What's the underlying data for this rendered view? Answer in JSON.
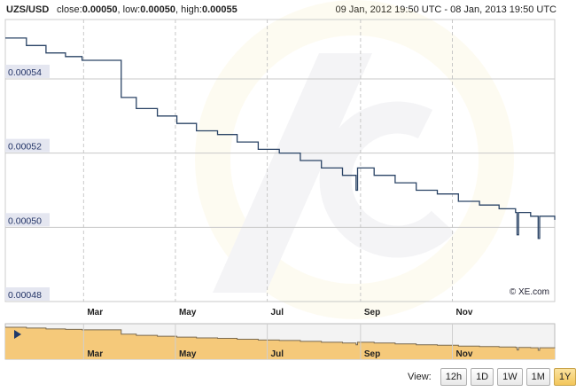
{
  "header": {
    "pair": "UZS/USD",
    "close_label": "close:",
    "close_value": "0.00050",
    "low_label": "low:",
    "low_value": "0.00050",
    "high_label": "high:",
    "high_value": "0.00055",
    "date_range": "09 Jan, 2012 19:50 UTC - 08 Jan, 2013 19:50 UTC"
  },
  "copyright": "© XE.com",
  "view": {
    "label": "View:",
    "buttons": [
      "12h",
      "1D",
      "1W",
      "1M",
      "1Y"
    ],
    "active": "1Y"
  },
  "colors": {
    "line": "#2b4466",
    "navigator_fill": "#f5c97a",
    "navigator_line": "#7a6a50",
    "grid": "#c8c8c8",
    "plot_bg": "#f4f4f8"
  },
  "chart_data": {
    "type": "line",
    "series": [
      {
        "name": "UZS/USD",
        "x": [
          "2012-01-09",
          "2012-01-23",
          "2012-02-05",
          "2012-02-18",
          "2012-02-29",
          "2012-03-12",
          "2012-03-24",
          "2012-03-26",
          "2012-04-05",
          "2012-04-19",
          "2012-05-02",
          "2012-05-15",
          "2012-05-29",
          "2012-06-11",
          "2012-06-25",
          "2012-07-09",
          "2012-07-23",
          "2012-08-06",
          "2012-08-20",
          "2012-08-29",
          "2012-08-30",
          "2012-09-10",
          "2012-09-24",
          "2012-10-08",
          "2012-10-22",
          "2012-11-05",
          "2012-11-19",
          "2012-12-02",
          "2012-12-13",
          "2012-12-14",
          "2012-12-15",
          "2012-12-23",
          "2012-12-27",
          "2012-12-28",
          "2012-12-29",
          "2013-01-08"
        ],
        "values": [
          0.000551,
          0.000549,
          0.000547,
          0.000546,
          0.000545,
          0.000545,
          0.000545,
          0.000535,
          0.000532,
          0.00053,
          0.000528,
          0.000526,
          0.000525,
          0.000523,
          0.000521,
          0.00052,
          0.000518,
          0.000516,
          0.000514,
          0.00051,
          0.000516,
          0.000514,
          0.000512,
          0.00051,
          0.000509,
          0.000507,
          0.000506,
          0.000505,
          0.000504,
          0.000498,
          0.000504,
          0.000503,
          0.000503,
          0.000497,
          0.000503,
          0.000502
        ]
      }
    ],
    "y_ticks": [
      "0.00048",
      "0.00050",
      "0.00052",
      "0.00054"
    ],
    "ylim": [
      0.00048,
      0.000556
    ],
    "x_ticks": [
      "Mar",
      "May",
      "Jul",
      "Sep",
      "Nov"
    ],
    "x_tick_dates": [
      "2012-03-01",
      "2012-05-01",
      "2012-07-01",
      "2012-09-01",
      "2012-11-01"
    ],
    "xlim": [
      "2012-01-09",
      "2013-01-08"
    ],
    "grid": true
  }
}
